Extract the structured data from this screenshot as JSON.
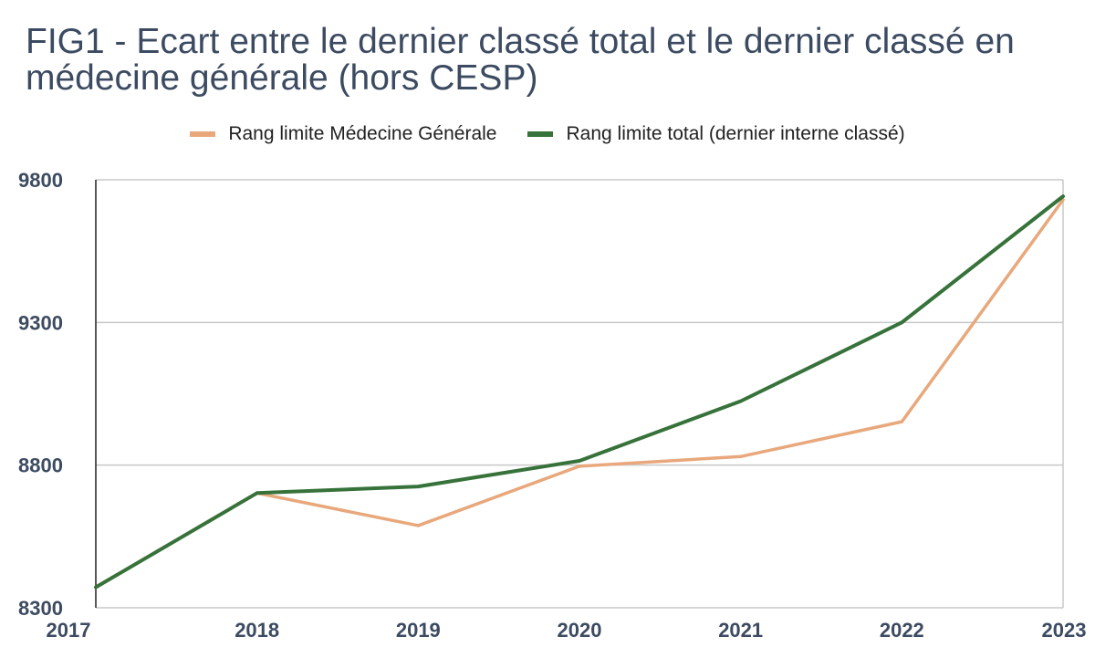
{
  "chart_data": {
    "type": "line",
    "title": "FIG1 - Ecart entre le dernier classé total et le dernier classé en médecine générale (hors CESP)",
    "xlabel": "",
    "ylabel": "",
    "x": [
      "2017",
      "2018",
      "2019",
      "2020",
      "2021",
      "2022",
      "2023"
    ],
    "ylim": [
      8300,
      9800
    ],
    "yticks": [
      "9800",
      "9300",
      "8800",
      "8300"
    ],
    "grid": true,
    "legend_position": "top",
    "series": [
      {
        "name": "Rang limite Médecine Générale",
        "color": "#e8a87c",
        "values": [
          8372,
          8702,
          8588,
          8796,
          8830,
          8952,
          9730
        ]
      },
      {
        "name": "Rang limite total (dernier interne classé)",
        "color": "#36723a",
        "values": [
          8372,
          8702,
          8725,
          8815,
          9024,
          9300,
          9742
        ]
      }
    ]
  }
}
